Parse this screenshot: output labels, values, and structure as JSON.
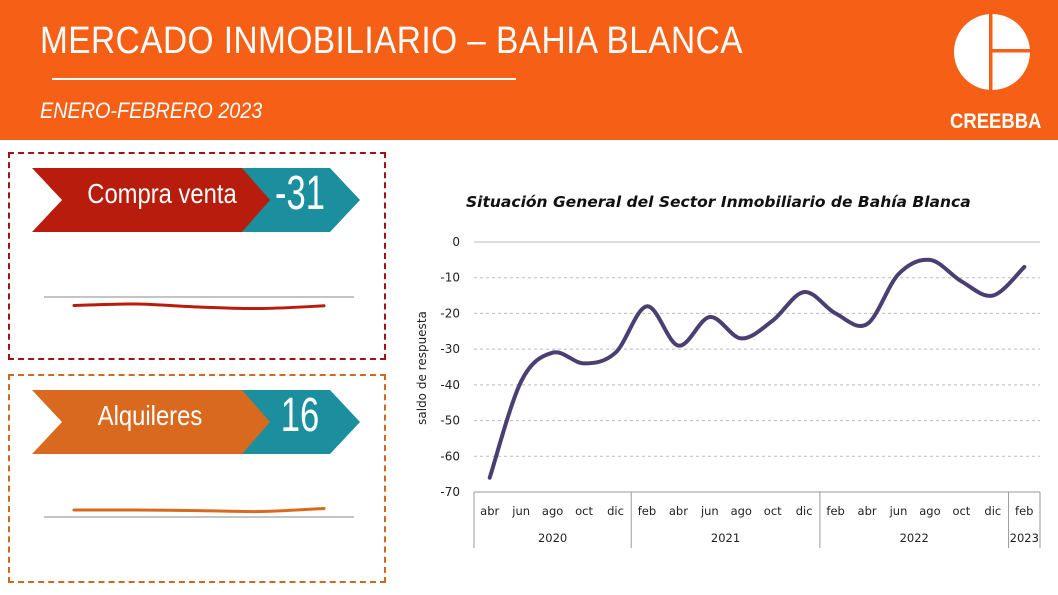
{
  "header": {
    "title": "MERCADO INMOBILIARIO – BAHIA BLANCA",
    "subtitle": "ENERO-FEBRERO 2023",
    "logo_text": "CREEBBA"
  },
  "colors": {
    "header_bg": "#f55f16",
    "sales": "#b71c0c",
    "rent": "#d9691e",
    "value_bg": "#1b8f9e",
    "chart_line": "#4b3f72"
  },
  "indicators": [
    {
      "label": "Compra venta",
      "value": "-31",
      "trend": [
        -0.5,
        0.0,
        -1.0,
        -1.5,
        -0.6
      ]
    },
    {
      "label": "Alquileres",
      "value": "16",
      "trend": [
        0.0,
        0.0,
        -0.2,
        -0.5,
        0.5
      ]
    }
  ],
  "chart_data": {
    "type": "line",
    "title": "Situación General del Sector Inmobiliario de Bahía Blanca",
    "xlabel": "",
    "ylabel": "saldo de respuesta",
    "ylim": [
      -70,
      0
    ],
    "yticks": [
      0,
      -10,
      -20,
      -30,
      -40,
      -50,
      -60,
      -70
    ],
    "grid": true,
    "categories": [
      "abr",
      "jun",
      "ago",
      "oct",
      "dic",
      "feb",
      "abr",
      "jun",
      "ago",
      "oct",
      "dic",
      "feb",
      "abr",
      "jun",
      "ago",
      "oct",
      "dic",
      "feb"
    ],
    "year_groups": [
      {
        "label": "2020",
        "count": 5
      },
      {
        "label": "2021",
        "count": 6
      },
      {
        "label": "2022",
        "count": 6
      },
      {
        "label": "2023",
        "count": 1
      }
    ],
    "series": [
      {
        "name": "saldo de respuesta",
        "values": [
          -66,
          -39,
          -31,
          -34,
          -31,
          -18,
          -29,
          -21,
          -27,
          -22,
          -14,
          -20,
          -23,
          -9,
          -5,
          -11,
          -15,
          -7
        ]
      }
    ]
  }
}
